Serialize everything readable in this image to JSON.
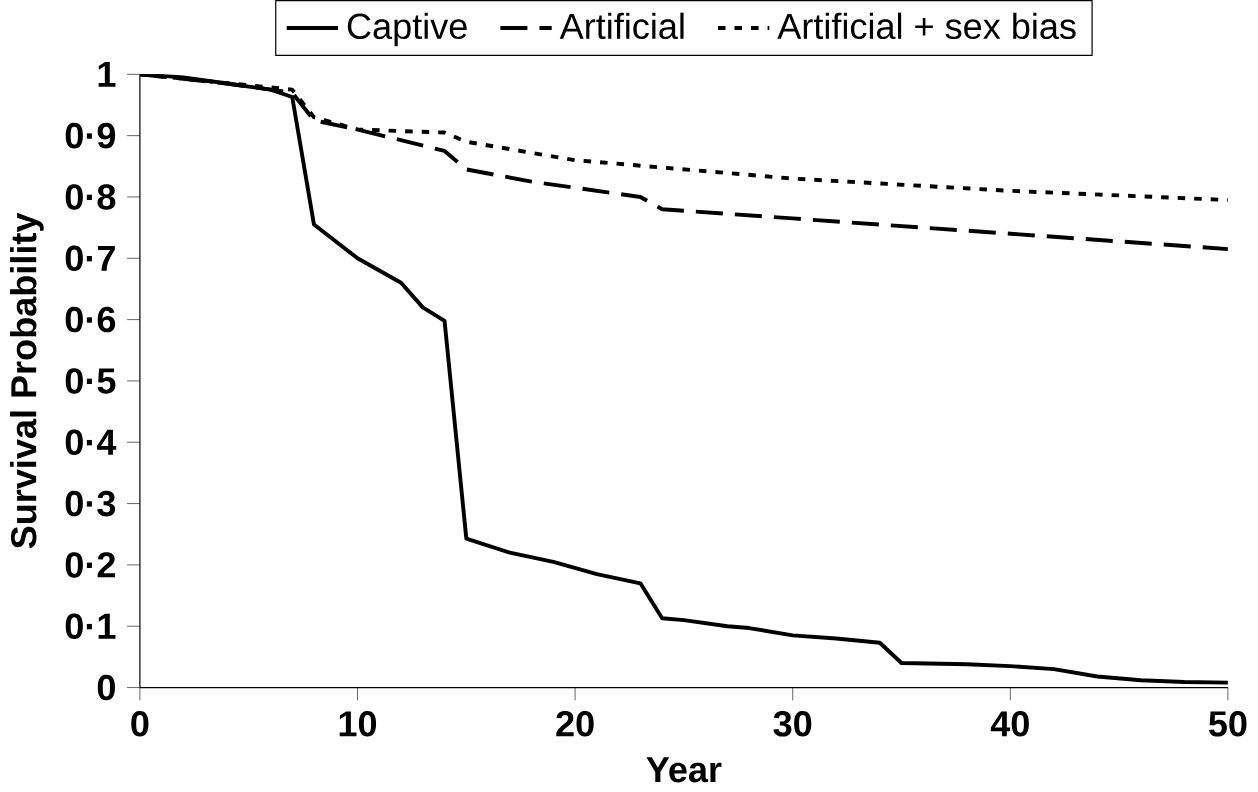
{
  "chart_data": {
    "type": "line",
    "xlabel": "Year",
    "ylabel": "Survival Probability",
    "xlim": [
      0,
      50
    ],
    "xticks": [
      0,
      10,
      20,
      30,
      40,
      50
    ],
    "ylim": [
      0,
      1
    ],
    "yticks": [
      0,
      {
        "value": 0.1,
        "label": "0·1"
      },
      {
        "value": 0.2,
        "label": "0·2"
      },
      {
        "value": 0.3,
        "label": "0·3"
      },
      {
        "value": 0.4,
        "label": "0·4"
      },
      {
        "value": 0.5,
        "label": "0·5"
      },
      {
        "value": 0.6,
        "label": "0·6"
      },
      {
        "value": 0.7,
        "label": "0·7"
      },
      {
        "value": 0.8,
        "label": "0·8"
      },
      {
        "value": 0.9,
        "label": "0·9"
      },
      1
    ],
    "legend": "top",
    "grid": false,
    "marker": "none",
    "series": [
      {
        "name": "Captive",
        "color": "#000000",
        "line_style": "solid",
        "x": [
          0,
          2,
          4,
          6,
          7,
          8,
          10,
          12,
          13,
          14,
          15,
          17,
          19,
          21,
          23,
          24,
          25,
          27,
          28,
          30,
          32,
          34,
          35,
          38,
          40,
          42,
          44,
          46,
          48,
          50
        ],
        "values": [
          1,
          0.995,
          0.985,
          0.975,
          0.963,
          0.755,
          0.7,
          0.66,
          0.62,
          0.598,
          0.243,
          0.22,
          0.205,
          0.185,
          0.17,
          0.113,
          0.11,
          0.1,
          0.097,
          0.085,
          0.08,
          0.073,
          0.04,
          0.038,
          0.035,
          0.03,
          0.018,
          0.012,
          0.009,
          0.008
        ]
      },
      {
        "name": "Artificial",
        "color": "#000000",
        "line_style": "dashed",
        "x": [
          0,
          4,
          7,
          8,
          10,
          14,
          15,
          18,
          23,
          24,
          30,
          40,
          50
        ],
        "values": [
          1,
          0.985,
          0.97,
          0.925,
          0.91,
          0.875,
          0.845,
          0.825,
          0.8,
          0.78,
          0.765,
          0.74,
          0.715
        ]
      },
      {
        "name": "Artificial + sex bias",
        "color": "#000000",
        "line_style": "dotted",
        "x": [
          0,
          7,
          8,
          10,
          14,
          15,
          20,
          30,
          40,
          50
        ],
        "values": [
          1,
          0.975,
          0.93,
          0.91,
          0.905,
          0.89,
          0.86,
          0.83,
          0.81,
          0.795
        ]
      }
    ]
  }
}
